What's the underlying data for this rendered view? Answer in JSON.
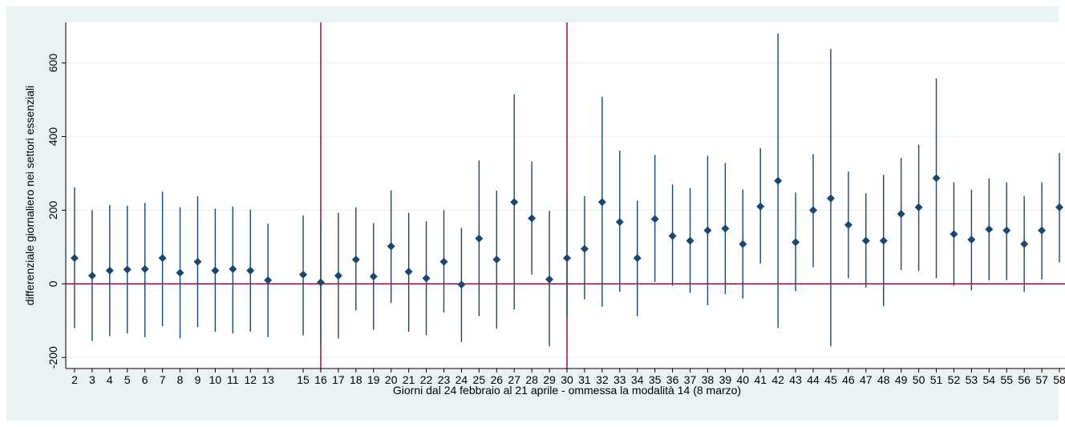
{
  "chart_data": {
    "type": "scatter",
    "xlabel": "Giorni dal 24 febbraio al 21 aprile - ommessa la modalità 14 (8 marzo)",
    "ylabel": "differenziale giornaliero nei settori essenziali",
    "ylim": [
      -230,
      710
    ],
    "xlim": [
      1.5,
      58.5
    ],
    "y_ticks": [
      -200,
      0,
      200,
      400,
      600
    ],
    "y_tick_labels": [
      "-200",
      "0",
      "200",
      "400",
      "600"
    ],
    "x_ticks": [
      2,
      3,
      4,
      5,
      6,
      7,
      8,
      9,
      10,
      11,
      12,
      13,
      15,
      16,
      17,
      18,
      19,
      20,
      21,
      22,
      23,
      24,
      25,
      26,
      27,
      28,
      29,
      30,
      31,
      32,
      33,
      34,
      35,
      36,
      37,
      38,
      39,
      40,
      41,
      42,
      43,
      44,
      45,
      46,
      47,
      48,
      49,
      50,
      51,
      52,
      53,
      54,
      55,
      56,
      57,
      58
    ],
    "x_tick_labels": [
      "2",
      "3",
      "4",
      "5",
      "6",
      "7",
      "8",
      "9",
      "10",
      "11",
      "12",
      "13",
      "15",
      "16",
      "17",
      "18",
      "19",
      "20",
      "21",
      "22",
      "23",
      "24",
      "25",
      "26",
      "27",
      "28",
      "29",
      "30",
      "31",
      "32",
      "33",
      "34",
      "35",
      "36",
      "37",
      "38",
      "39",
      "40",
      "41",
      "42",
      "43",
      "44",
      "45",
      "46",
      "47",
      "48",
      "49",
      "50",
      "51",
      "52",
      "53",
      "54",
      "55",
      "56",
      "57",
      "58"
    ],
    "reference_lines": {
      "horizontal": [
        0
      ],
      "vertical": [
        16,
        30
      ]
    },
    "grid": true,
    "colors": {
      "background": "#eaf2f3",
      "plot_area": "#ffffff",
      "marker": "#1a476f",
      "reference_line": "#90002e",
      "grid": "#eaf2f3"
    },
    "series": [
      {
        "type": "coefficient_with_ci",
        "points": [
          {
            "x": 2,
            "y": 70,
            "lo": -120,
            "hi": 262
          },
          {
            "x": 3,
            "y": 22,
            "lo": -155,
            "hi": 200
          },
          {
            "x": 4,
            "y": 36,
            "lo": -142,
            "hi": 214
          },
          {
            "x": 5,
            "y": 39,
            "lo": -135,
            "hi": 212
          },
          {
            "x": 6,
            "y": 40,
            "lo": -145,
            "hi": 220
          },
          {
            "x": 7,
            "y": 70,
            "lo": -115,
            "hi": 250
          },
          {
            "x": 8,
            "y": 30,
            "lo": -148,
            "hi": 208
          },
          {
            "x": 9,
            "y": 60,
            "lo": -118,
            "hi": 238
          },
          {
            "x": 10,
            "y": 36,
            "lo": -130,
            "hi": 204
          },
          {
            "x": 11,
            "y": 40,
            "lo": -135,
            "hi": 210
          },
          {
            "x": 12,
            "y": 36,
            "lo": -130,
            "hi": 202
          },
          {
            "x": 13,
            "y": 10,
            "lo": -145,
            "hi": 163
          },
          {
            "x": 15,
            "y": 25,
            "lo": -140,
            "hi": 186
          },
          {
            "x": 16,
            "y": 4,
            "lo": -165,
            "hi": 170
          },
          {
            "x": 17,
            "y": 22,
            "lo": -148,
            "hi": 193
          },
          {
            "x": 18,
            "y": 66,
            "lo": -72,
            "hi": 208
          },
          {
            "x": 19,
            "y": 20,
            "lo": -125,
            "hi": 165
          },
          {
            "x": 20,
            "y": 102,
            "lo": -52,
            "hi": 254
          },
          {
            "x": 21,
            "y": 33,
            "lo": -130,
            "hi": 193
          },
          {
            "x": 22,
            "y": 15,
            "lo": -140,
            "hi": 170
          },
          {
            "x": 23,
            "y": 60,
            "lo": -78,
            "hi": 200
          },
          {
            "x": 24,
            "y": -2,
            "lo": -158,
            "hi": 152
          },
          {
            "x": 25,
            "y": 123,
            "lo": -88,
            "hi": 335
          },
          {
            "x": 26,
            "y": 66,
            "lo": -122,
            "hi": 253
          },
          {
            "x": 27,
            "y": 222,
            "lo": -70,
            "hi": 515
          },
          {
            "x": 28,
            "y": 178,
            "lo": 25,
            "hi": 332
          },
          {
            "x": 29,
            "y": 12,
            "lo": -170,
            "hi": 198
          },
          {
            "x": 30,
            "y": 70,
            "lo": -90,
            "hi": 232
          },
          {
            "x": 31,
            "y": 95,
            "lo": -42,
            "hi": 238
          },
          {
            "x": 32,
            "y": 222,
            "lo": -62,
            "hi": 508
          },
          {
            "x": 33,
            "y": 168,
            "lo": -22,
            "hi": 362
          },
          {
            "x": 34,
            "y": 70,
            "lo": -88,
            "hi": 226
          },
          {
            "x": 35,
            "y": 176,
            "lo": 5,
            "hi": 350
          },
          {
            "x": 36,
            "y": 130,
            "lo": -5,
            "hi": 270
          },
          {
            "x": 37,
            "y": 117,
            "lo": -25,
            "hi": 260
          },
          {
            "x": 38,
            "y": 145,
            "lo": -58,
            "hi": 348
          },
          {
            "x": 39,
            "y": 150,
            "lo": -28,
            "hi": 328
          },
          {
            "x": 40,
            "y": 108,
            "lo": -40,
            "hi": 256
          },
          {
            "x": 41,
            "y": 210,
            "lo": 55,
            "hi": 368
          },
          {
            "x": 42,
            "y": 280,
            "lo": -120,
            "hi": 680
          },
          {
            "x": 43,
            "y": 113,
            "lo": -20,
            "hi": 248
          },
          {
            "x": 44,
            "y": 200,
            "lo": 45,
            "hi": 352
          },
          {
            "x": 45,
            "y": 232,
            "lo": -170,
            "hi": 638
          },
          {
            "x": 46,
            "y": 160,
            "lo": 15,
            "hi": 305
          },
          {
            "x": 47,
            "y": 117,
            "lo": -10,
            "hi": 246
          },
          {
            "x": 48,
            "y": 117,
            "lo": -60,
            "hi": 296
          },
          {
            "x": 49,
            "y": 190,
            "lo": 38,
            "hi": 342
          },
          {
            "x": 50,
            "y": 208,
            "lo": 35,
            "hi": 378
          },
          {
            "x": 51,
            "y": 287,
            "lo": 15,
            "hi": 558
          },
          {
            "x": 52,
            "y": 135,
            "lo": -5,
            "hi": 276
          },
          {
            "x": 53,
            "y": 120,
            "lo": -18,
            "hi": 256
          },
          {
            "x": 54,
            "y": 148,
            "lo": 10,
            "hi": 286
          },
          {
            "x": 55,
            "y": 145,
            "lo": 10,
            "hi": 276
          },
          {
            "x": 56,
            "y": 108,
            "lo": -22,
            "hi": 238
          },
          {
            "x": 57,
            "y": 145,
            "lo": 12,
            "hi": 276
          },
          {
            "x": 58,
            "y": 208,
            "lo": 58,
            "hi": 356
          }
        ]
      }
    ]
  }
}
